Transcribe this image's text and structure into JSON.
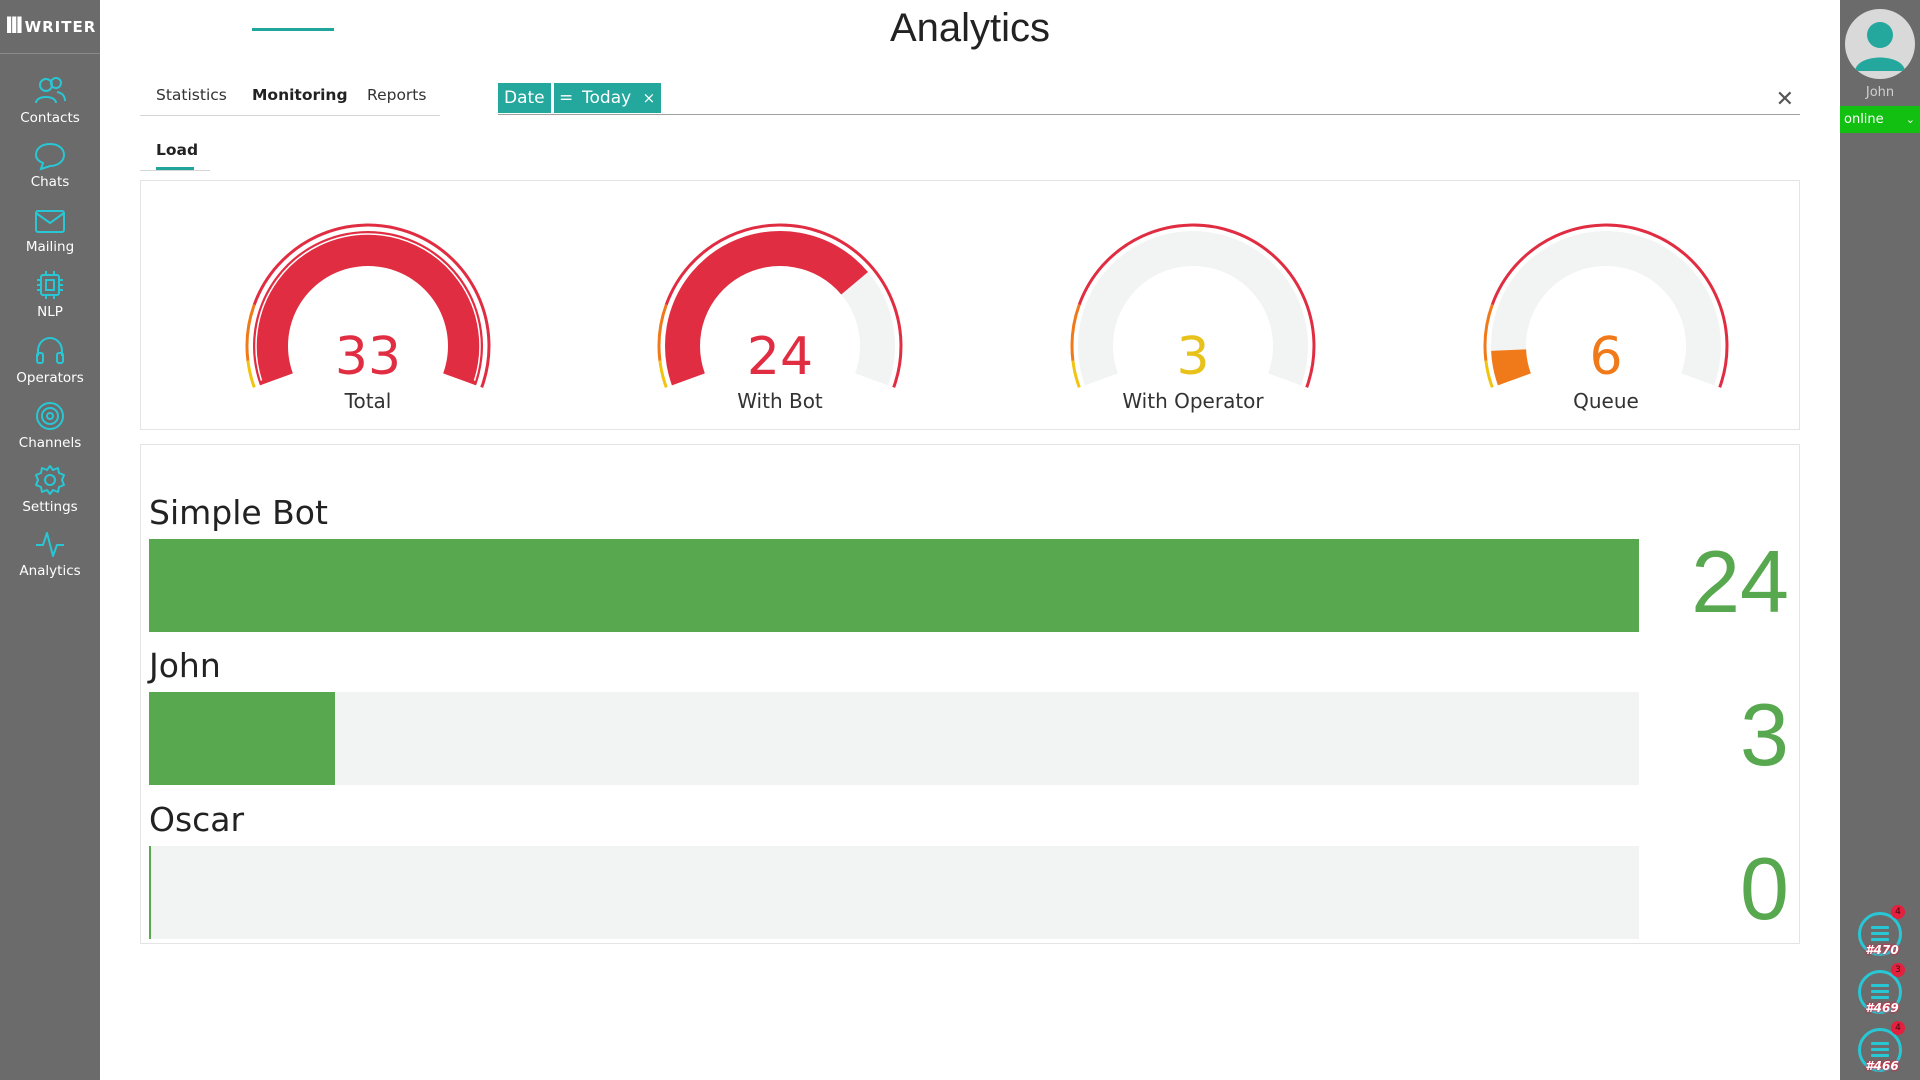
{
  "app": {
    "logo_mark": "III",
    "logo_text": "WRITER"
  },
  "sidebar": {
    "items": [
      {
        "label": "Contacts",
        "icon": "users-icon"
      },
      {
        "label": "Chats",
        "icon": "chat-bubble-icon"
      },
      {
        "label": "Mailing",
        "icon": "envelope-icon"
      },
      {
        "label": "NLP",
        "icon": "chip-icon"
      },
      {
        "label": "Operators",
        "icon": "headset-icon"
      },
      {
        "label": "Channels",
        "icon": "target-icon"
      },
      {
        "label": "Settings",
        "icon": "gear-icon"
      },
      {
        "label": "Analytics",
        "icon": "activity-icon"
      }
    ]
  },
  "header": {
    "title": "Analytics"
  },
  "tabs": [
    {
      "label": "Statistics",
      "active": false
    },
    {
      "label": "Monitoring",
      "active": true
    },
    {
      "label": "Reports",
      "active": false
    }
  ],
  "filter": {
    "field": "Date",
    "operator": "=",
    "value": "Today",
    "remove": "×",
    "clear": "✕"
  },
  "subtabs": [
    {
      "label": "Load",
      "active": true
    }
  ],
  "gauges": [
    {
      "value": "33",
      "label": "Total",
      "color": "#e12d42",
      "level": 1.0
    },
    {
      "value": "24",
      "label": "With Bot",
      "color": "#e12d42",
      "level": 0.727
    },
    {
      "value": "3",
      "label": "With Operator",
      "color": "#e8c21a",
      "level": 0.0
    },
    {
      "value": "6",
      "label": "Queue",
      "color": "#f07a1a",
      "level": 0.08
    }
  ],
  "bars": [
    {
      "name": "Simple Bot",
      "value": 24,
      "value_text": "24",
      "fraction": 1.0
    },
    {
      "name": "John",
      "value": 3,
      "value_text": "3",
      "fraction": 0.125
    },
    {
      "name": "Oscar",
      "value": 0,
      "value_text": "0",
      "fraction": 0.0
    }
  ],
  "user": {
    "name": "John",
    "status": "online",
    "status_color": "#12c012"
  },
  "chat_queue": [
    {
      "number": "#470",
      "badge": "4"
    },
    {
      "number": "#469",
      "badge": "3"
    },
    {
      "number": "#466",
      "badge": "4"
    }
  ],
  "colors": {
    "accent": "#24a79d",
    "bar_fill": "#57a84e",
    "sidebar": "#6b6b6b",
    "icon": "#28c7d5"
  }
}
